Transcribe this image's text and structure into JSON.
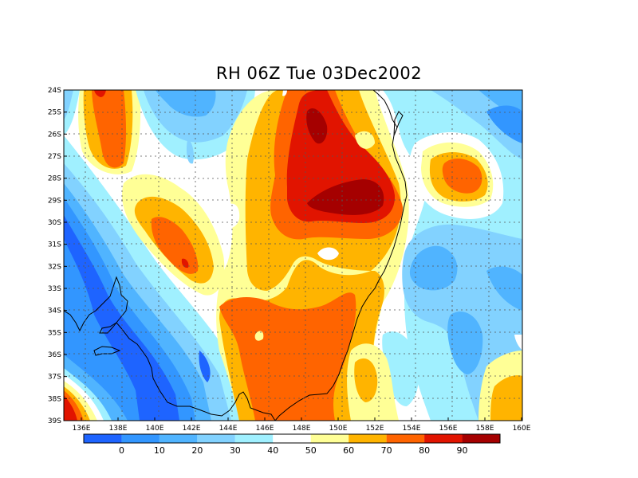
{
  "title": "RH 06Z Tue 03Dec2002",
  "lat_labels": [
    "24S",
    "25S",
    "26S",
    "27S",
    "28S",
    "29S",
    "30S",
    "31S",
    "32S",
    "33S",
    "34S",
    "35S",
    "36S",
    "37S",
    "38S",
    "39S"
  ],
  "lon_labels": [
    "136E",
    "138E",
    "140E",
    "142E",
    "144E",
    "146E",
    "148E",
    "150E",
    "152E",
    "154E",
    "156E",
    "158E",
    "160E"
  ],
  "colorbar": {
    "colors": [
      "#1e64ff",
      "#3296ff",
      "#50b4ff",
      "#82d2ff",
      "#a0f0ff",
      "#ffffff",
      "#ffff96",
      "#ffb400",
      "#ff6400",
      "#e11400",
      "#a50000"
    ],
    "tick_labels": [
      "0",
      "10",
      "20",
      "30",
      "40",
      "50",
      "60",
      "70",
      "80",
      "90"
    ]
  }
}
